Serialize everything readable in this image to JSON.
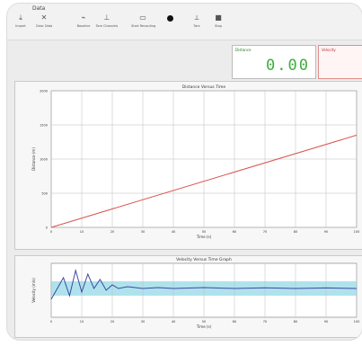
{
  "window": {
    "menu_title": "Data",
    "toolbar": [
      {
        "label": "Import",
        "icon": "import-icon"
      },
      {
        "label": "Clear Data",
        "icon": "clear-icon"
      },
      {
        "label": "Baseline",
        "icon": "baseline-icon"
      },
      {
        "label": "Tare Channels",
        "icon": "tare-icon"
      },
      {
        "label": "Start Recording",
        "icon": "record-icon"
      },
      {
        "label": "Tare",
        "icon": "tare-small-icon"
      },
      {
        "label": "Stop",
        "icon": "stop-icon"
      }
    ]
  },
  "readouts": [
    {
      "label": "Distance",
      "value": "0.00",
      "color": "#3cae3c"
    },
    {
      "label": "Velocity",
      "value": "",
      "color": "#e07070"
    }
  ],
  "chart_data": [
    {
      "type": "line",
      "title": "Distance Versus Time",
      "xlabel": "Time (s)",
      "ylabel": "Distance (m)",
      "xlim": [
        0,
        100
      ],
      "ylim": [
        0,
        2000
      ],
      "yticks": [
        "0",
        "500",
        "1000",
        "1500",
        "2000"
      ],
      "xticks": [
        "0",
        "10",
        "20",
        "30",
        "40",
        "50",
        "60",
        "70",
        "80",
        "90",
        "100"
      ],
      "series": [
        {
          "color": "#d9534f",
          "x": [
            0,
            100
          ],
          "y": [
            0,
            1350
          ]
        }
      ]
    },
    {
      "type": "line",
      "title": "Velocity Versus Time Graph",
      "xlabel": "Time (s)",
      "ylabel": "Velocity (m/s)",
      "xlim": [
        0,
        100
      ],
      "ylim": [
        0,
        30
      ],
      "xticks": [
        "0",
        "10",
        "20",
        "30",
        "40",
        "50",
        "60",
        "70",
        "80",
        "90",
        "100"
      ],
      "band": {
        "low": 12,
        "high": 20,
        "color": "#8fd6e6"
      },
      "series": [
        {
          "color": "#3a4aa0",
          "x": [
            0,
            4,
            6,
            8,
            10,
            12,
            14,
            16,
            18,
            20,
            22,
            25,
            30,
            35,
            40,
            50,
            60,
            70,
            80,
            90,
            100
          ],
          "y": [
            10,
            22,
            12,
            26,
            14,
            24,
            16,
            21,
            15,
            18,
            16,
            17,
            16,
            16.5,
            16,
            16.5,
            16,
            16.4,
            16,
            16.3,
            16
          ]
        }
      ]
    }
  ]
}
